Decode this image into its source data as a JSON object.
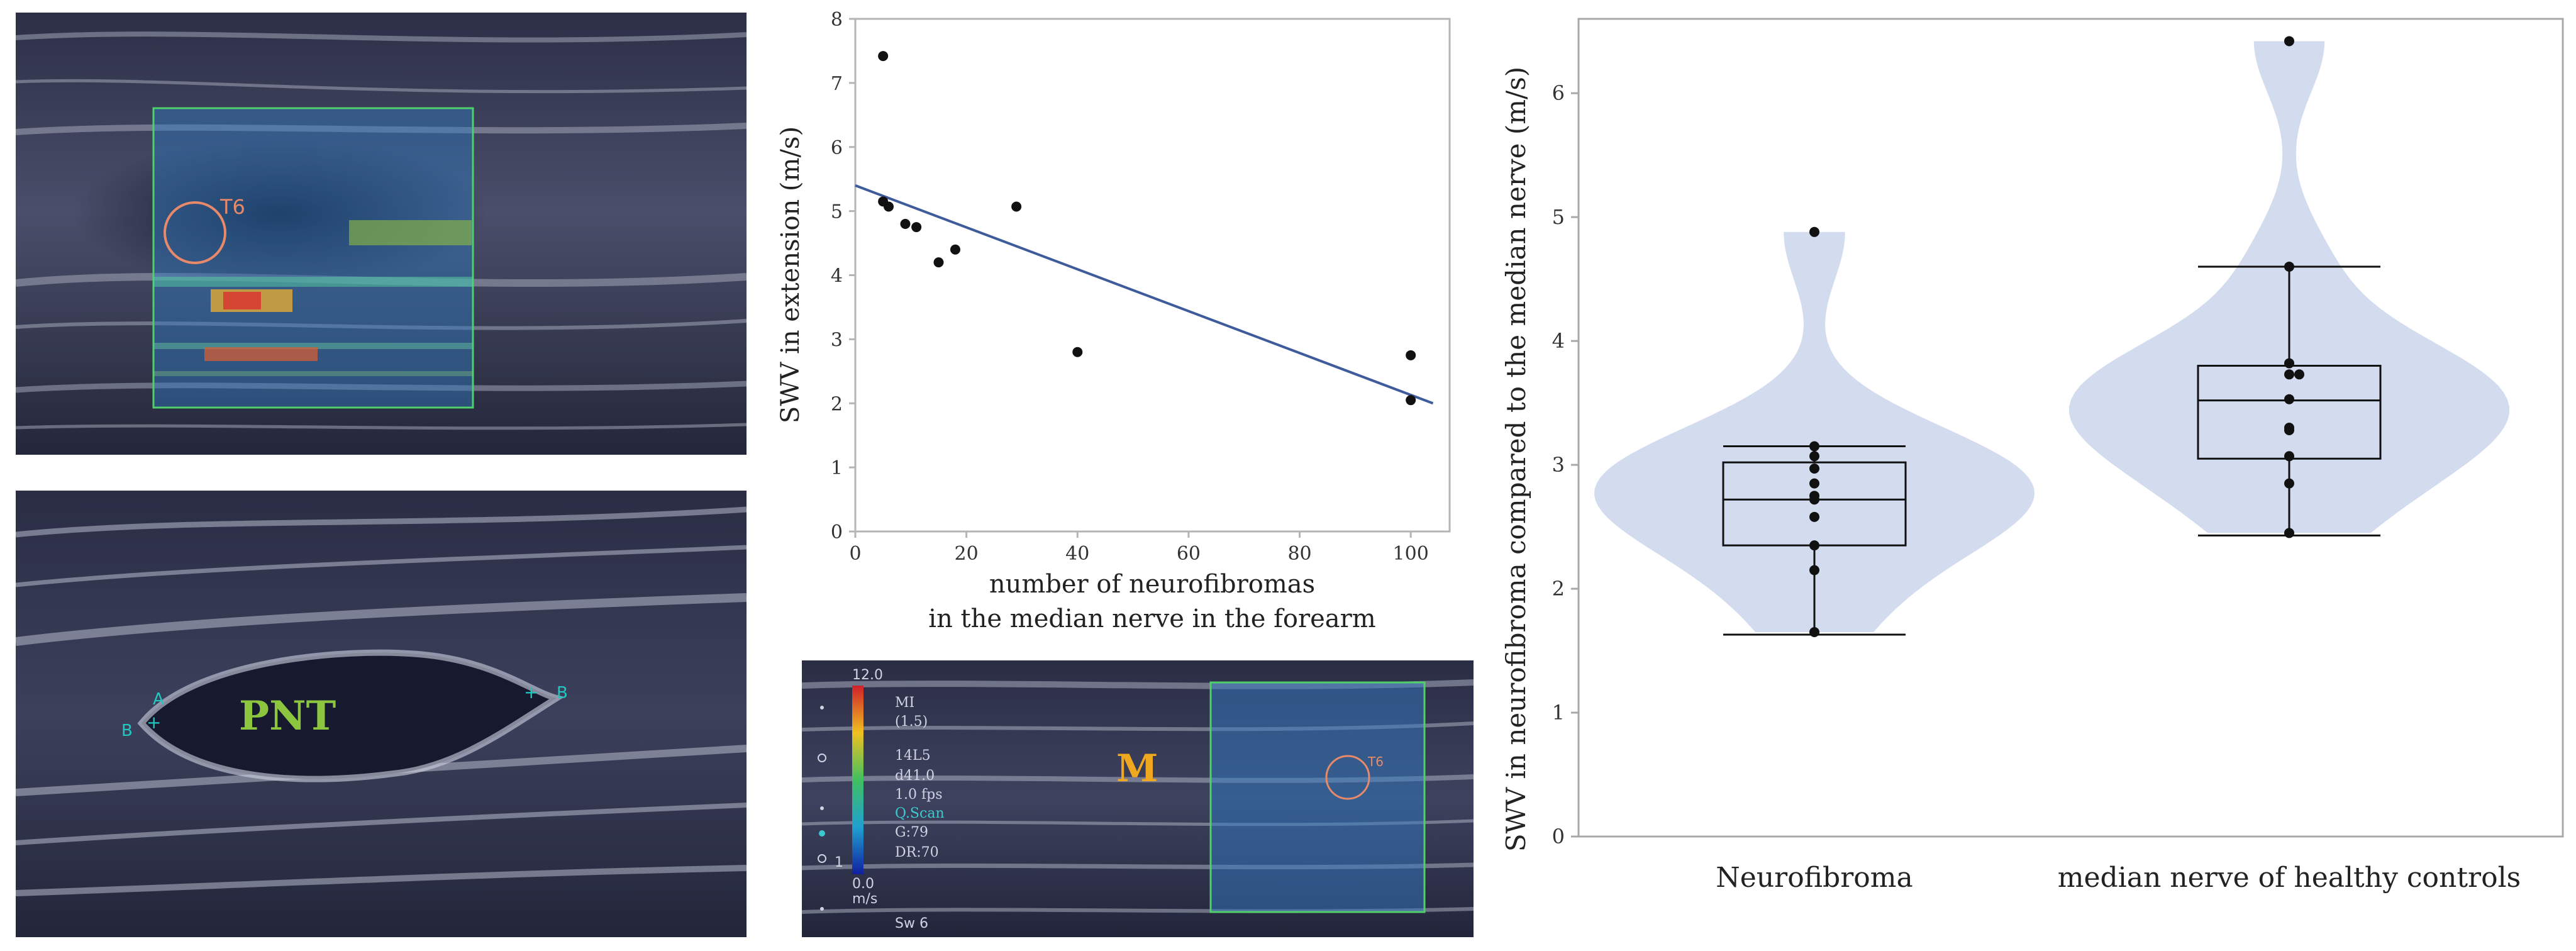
{
  "images": {
    "top_left": {
      "label": "T6"
    },
    "bottom_left": {
      "label": "PNT",
      "caliper_a": "A",
      "caliper_b": "B"
    },
    "bottom_mid": {
      "label": "M",
      "roi_label": "T6",
      "scale_top": "12.0",
      "scale_bottom": "0.0",
      "scale_unit": "m/s",
      "params": [
        "MI",
        "(1.5)",
        "14L5",
        "d41.0",
        "1.0 fps",
        "Q.Scan",
        "G:79",
        "DR:70"
      ],
      "marker": "1",
      "footer": "Sw 6"
    }
  },
  "chart_data": [
    {
      "type": "scatter",
      "xlabel_lines": [
        "number of neurofibromas",
        "in the median nerve in the forearm"
      ],
      "ylabel": "SWV in extension (m/s)",
      "xlim": [
        0,
        107
      ],
      "ylim": [
        0,
        8
      ],
      "xticks": [
        "0",
        "20",
        "40",
        "60",
        "80",
        "100"
      ],
      "yticks": [
        "0",
        "1",
        "2",
        "3",
        "4",
        "5",
        "6",
        "7",
        "8"
      ],
      "points": [
        {
          "x": 5,
          "y": 7.42
        },
        {
          "x": 5,
          "y": 5.15
        },
        {
          "x": 6,
          "y": 5.07
        },
        {
          "x": 9,
          "y": 4.8
        },
        {
          "x": 11,
          "y": 4.75
        },
        {
          "x": 15,
          "y": 4.2
        },
        {
          "x": 18,
          "y": 4.4
        },
        {
          "x": 29,
          "y": 5.07
        },
        {
          "x": 40,
          "y": 2.8
        },
        {
          "x": 100,
          "y": 2.75
        },
        {
          "x": 100,
          "y": 2.05
        }
      ],
      "fit_line": {
        "x0": 0,
        "y0": 5.4,
        "x1": 104,
        "y1": 2.0
      },
      "colors": {
        "points": "#111111",
        "line": "#3e5b9b"
      }
    },
    {
      "type": "violin-box",
      "ylabel": "SWV in neurofibroma compared to the median nerve (m/s)",
      "ylim": [
        0,
        6.6
      ],
      "yticks": [
        "0",
        "1",
        "2",
        "3",
        "4",
        "5",
        "6"
      ],
      "categories": [
        "Neurofibroma",
        "median nerve of healthy controls"
      ],
      "groups": [
        {
          "name": "Neurofibroma",
          "points": [
            4.88,
            3.15,
            3.07,
            2.97,
            2.85,
            2.75,
            2.72,
            2.58,
            2.35,
            2.15,
            1.65
          ],
          "box": {
            "min": 1.63,
            "q1": 2.35,
            "median": 2.72,
            "q3": 3.02,
            "max": 3.15
          }
        },
        {
          "name": "median nerve of healthy controls",
          "points": [
            6.42,
            4.6,
            3.82,
            3.73,
            3.73,
            3.53,
            3.3,
            3.28,
            3.07,
            2.85,
            2.45
          ],
          "box": {
            "min": 2.43,
            "q1": 3.05,
            "median": 3.52,
            "q3": 3.8,
            "max": 4.6
          }
        }
      ],
      "colors": {
        "violin": "#d3dcef",
        "box": "#111111",
        "points": "#111111"
      }
    }
  ]
}
